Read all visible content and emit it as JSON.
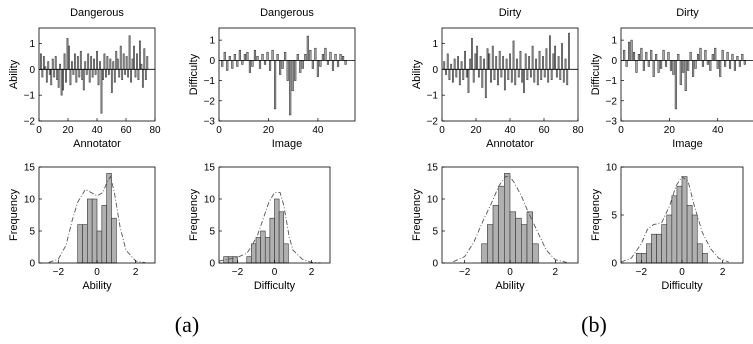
{
  "figure": {
    "panel_labels": [
      "(a)",
      "(b)"
    ]
  },
  "chart_data": [
    {
      "id": "a1",
      "group": "(a)",
      "type": "bar",
      "title": "Dangerous",
      "xlabel": "Annotator",
      "ylabel": "Ability",
      "xlim": [
        0,
        80
      ],
      "ylim": [
        -2,
        1.6
      ],
      "xticks": [
        0,
        20,
        40,
        60,
        80
      ],
      "yticks": [
        -2,
        -1,
        0,
        1
      ],
      "values": [
        0.6,
        -0.3,
        0.5,
        0.1,
        -0.5,
        0.3,
        -0.2,
        -0.6,
        0.4,
        -0.3,
        0.5,
        -0.4,
        -0.7,
        0.2,
        -1.0,
        -0.8,
        0.6,
        -0.5,
        1.2,
        0.9,
        -0.6,
        0.3,
        -0.2,
        0.6,
        -0.5,
        0.5,
        -0.3,
        0.7,
        -0.4,
        -0.8,
        0.3,
        -0.2,
        0.6,
        -0.5,
        0.5,
        -0.3,
        0.4,
        -0.2,
        0.7,
        -0.6,
        0.3,
        -1.7,
        -0.4,
        0.6,
        -0.3,
        0.5,
        -0.2,
        0.4,
        -0.9,
        0.3,
        -0.5,
        0.7,
        0.4,
        -0.3,
        0.9,
        -0.4,
        0.6,
        -0.2,
        0.5,
        -0.3,
        1.3,
        -0.5,
        0.4,
        0.9,
        -0.3,
        0.6,
        -0.4,
        1.1,
        0.2,
        -0.7,
        0.8,
        -0.4,
        0.5
      ]
    },
    {
      "id": "a2",
      "group": "(a)",
      "type": "bar",
      "title": "Dangerous",
      "xlabel": "Image",
      "ylabel": "Difficulty",
      "xlim": [
        0,
        55
      ],
      "ylim": [
        -3,
        1.6
      ],
      "xticks": [
        0,
        20,
        40
      ],
      "yticks": [
        -3,
        -2,
        -1,
        0,
        1
      ],
      "values": [
        -0.3,
        0.4,
        -0.5,
        0.2,
        -0.4,
        0.3,
        -0.3,
        0.5,
        -0.2,
        0.3,
        0.4,
        -0.6,
        -0.3,
        0.5,
        0.2,
        -0.4,
        0.3,
        -0.2,
        0.4,
        -0.5,
        0.5,
        -2.4,
        0.3,
        -0.7,
        -0.4,
        0.4,
        -1.0,
        -2.7,
        -1.5,
        -1.0,
        0.3,
        -0.6,
        -0.4,
        0.3,
        1.2,
        0.5,
        -0.4,
        0.6,
        -0.8,
        -0.3,
        0.3,
        0.6,
        -0.2,
        0.4,
        -0.5,
        0.3,
        -0.3,
        0.3,
        0.2,
        -0.2
      ]
    },
    {
      "id": "a3",
      "group": "(a)",
      "type": "bar",
      "title": "",
      "xlabel": "Ability",
      "ylabel": "Frequency",
      "xlim": [
        -3,
        3
      ],
      "ylim": [
        0,
        15
      ],
      "xticks": [
        -2,
        0,
        2
      ],
      "yticks": [
        0,
        5,
        10,
        15
      ],
      "bin_edges": [
        -1.0,
        -0.75,
        -0.5,
        -0.25,
        0.0,
        0.25,
        0.5,
        0.75,
        1.0
      ],
      "values": [
        6,
        6,
        10,
        10,
        5,
        9,
        14,
        7
      ],
      "density_x": [
        -2.5,
        -2.0,
        -1.6,
        -1.3,
        -1.0,
        -0.6,
        -0.3,
        0.0,
        0.3,
        0.5,
        0.7,
        0.9,
        1.2,
        1.5,
        2.0,
        2.5
      ],
      "density_y": [
        0.1,
        0.6,
        2.8,
        6.5,
        9.5,
        11.5,
        11.0,
        10.5,
        11.0,
        12.5,
        13.5,
        11.0,
        5.5,
        2.0,
        0.3,
        0.05
      ]
    },
    {
      "id": "a4",
      "group": "(a)",
      "type": "bar",
      "title": "",
      "xlabel": "Difficulty",
      "ylabel": "Frequency",
      "xlim": [
        -3,
        3
      ],
      "ylim": [
        0,
        15
      ],
      "xticks": [
        -2,
        0,
        2
      ],
      "yticks": [
        0,
        5,
        10,
        15
      ],
      "bin_edges": [
        -2.75,
        -2.5,
        -2.25,
        -2.0,
        -1.75,
        -1.5,
        -1.25,
        -1.0,
        -0.75,
        -0.5,
        -0.25,
        0.0,
        0.25,
        0.5,
        0.75
      ],
      "values": [
        1,
        1,
        1,
        0,
        0,
        1,
        3,
        4,
        5,
        4,
        7,
        10,
        8,
        3
      ],
      "density_x": [
        -3.0,
        -2.5,
        -2.0,
        -1.5,
        -1.2,
        -0.9,
        -0.6,
        -0.3,
        0.0,
        0.3,
        0.5,
        0.8,
        1.0,
        1.5,
        2.0,
        2.5
      ],
      "density_y": [
        0.3,
        0.6,
        0.9,
        1.5,
        2.8,
        4.5,
        7.0,
        9.5,
        11.0,
        11.0,
        9.0,
        4.0,
        2.0,
        0.6,
        0.1,
        0.0
      ]
    },
    {
      "id": "b1",
      "group": "(b)",
      "type": "bar",
      "title": "Dirty",
      "xlabel": "Annotator",
      "ylabel": "Ability",
      "xlim": [
        0,
        80
      ],
      "ylim": [
        -2,
        1.6
      ],
      "xticks": [
        0,
        20,
        40,
        60,
        80
      ],
      "yticks": [
        -2,
        -1,
        0,
        1
      ],
      "values": [
        0.3,
        -0.2,
        0.6,
        -0.4,
        0.2,
        -0.5,
        0.4,
        -0.3,
        0.5,
        -0.6,
        0.3,
        -0.4,
        0.7,
        -0.3,
        -0.9,
        0.4,
        1.2,
        -0.5,
        0.6,
        0.9,
        -0.3,
        0.5,
        -0.7,
        0.4,
        -1.1,
        0.8,
        0.6,
        -0.5,
        0.9,
        -0.4,
        0.5,
        -0.6,
        0.7,
        -0.3,
        0.5,
        -0.8,
        0.4,
        -0.4,
        0.6,
        -0.5,
        1.1,
        -0.6,
        0.4,
        -0.3,
        0.7,
        -0.5,
        -0.9,
        0.6,
        -0.4,
        0.5,
        -0.3,
        0.9,
        -0.5,
        0.4,
        -0.6,
        0.7,
        -0.4,
        0.5,
        -0.3,
        0.8,
        -0.5,
        1.3,
        -0.4,
        0.6,
        0.9,
        -0.3,
        0.5,
        -0.4,
        1.0,
        -0.5,
        0.4,
        -0.6,
        1.4
      ]
    },
    {
      "id": "b2",
      "group": "(b)",
      "type": "bar",
      "title": "Dirty",
      "xlabel": "Image",
      "ylabel": "Difficulty",
      "xlim": [
        0,
        55
      ],
      "ylim": [
        -3,
        1.6
      ],
      "xticks": [
        0,
        20,
        40
      ],
      "yticks": [
        -3,
        -2,
        -1,
        0,
        1
      ],
      "values": [
        0.5,
        -0.3,
        0.9,
        1.0,
        0.4,
        -0.6,
        0.3,
        0.6,
        -0.5,
        0.4,
        -0.3,
        0.5,
        -0.8,
        0.3,
        -0.6,
        -0.4,
        0.5,
        -0.3,
        0.4,
        -0.5,
        -0.7,
        -2.4,
        0.3,
        -1.2,
        -0.6,
        -1.5,
        -0.5,
        0.4,
        -0.8,
        -0.4,
        0.3,
        0.6,
        -0.3,
        0.5,
        -0.2,
        -0.5,
        0.3,
        0.6,
        -0.4,
        -0.8,
        0.5,
        -0.3,
        0.4,
        -0.4,
        0.3,
        -0.5,
        0.2,
        -0.3,
        0.3,
        -0.2
      ]
    },
    {
      "id": "b3",
      "group": "(b)",
      "type": "bar",
      "title": "",
      "xlabel": "Ability",
      "ylabel": "Frequency",
      "xlim": [
        -3,
        3
      ],
      "ylim": [
        0,
        15
      ],
      "xticks": [
        -2,
        0,
        2
      ],
      "yticks": [
        0,
        5,
        10,
        15
      ],
      "bin_edges": [
        -1.25,
        -1.0,
        -0.75,
        -0.5,
        -0.25,
        0.0,
        0.25,
        0.5,
        0.75,
        1.0,
        1.25
      ],
      "values": [
        3,
        6,
        9,
        12,
        14,
        8,
        7,
        6,
        8,
        3
      ],
      "density_x": [
        -2.5,
        -2.0,
        -1.6,
        -1.2,
        -0.8,
        -0.5,
        -0.2,
        0.0,
        0.2,
        0.5,
        0.8,
        1.2,
        1.6,
        2.0,
        2.5
      ],
      "density_y": [
        0.2,
        1.0,
        3.2,
        6.5,
        9.5,
        12.0,
        13.5,
        13.5,
        12.5,
        10.5,
        8.0,
        5.0,
        2.0,
        0.5,
        0.1
      ]
    },
    {
      "id": "b4",
      "group": "(b)",
      "type": "bar",
      "title": "",
      "xlabel": "Difficulty",
      "ylabel": "Frequency",
      "xlim": [
        -3,
        3
      ],
      "ylim": [
        0,
        10
      ],
      "xticks": [
        -2,
        0,
        2
      ],
      "yticks": [
        0,
        5,
        10
      ],
      "bin_edges": [
        -2.5,
        -2.25,
        -2.0,
        -1.75,
        -1.5,
        -1.25,
        -1.0,
        -0.75,
        -0.5,
        -0.25,
        0.0,
        0.25,
        0.5,
        0.75,
        1.0,
        1.25
      ],
      "values": [
        0,
        1,
        1,
        2,
        3,
        3,
        4,
        5,
        7,
        8,
        9,
        6,
        5,
        2,
        1
      ],
      "density_x": [
        -3.0,
        -2.5,
        -2.0,
        -1.7,
        -1.4,
        -1.0,
        -0.6,
        -0.3,
        0.0,
        0.3,
        0.6,
        1.0,
        1.4,
        1.8,
        2.3
      ],
      "density_y": [
        0.1,
        0.5,
        2.0,
        3.5,
        4.0,
        4.2,
        6.0,
        8.0,
        9.0,
        8.5,
        6.0,
        3.2,
        1.5,
        0.5,
        0.1
      ]
    }
  ]
}
